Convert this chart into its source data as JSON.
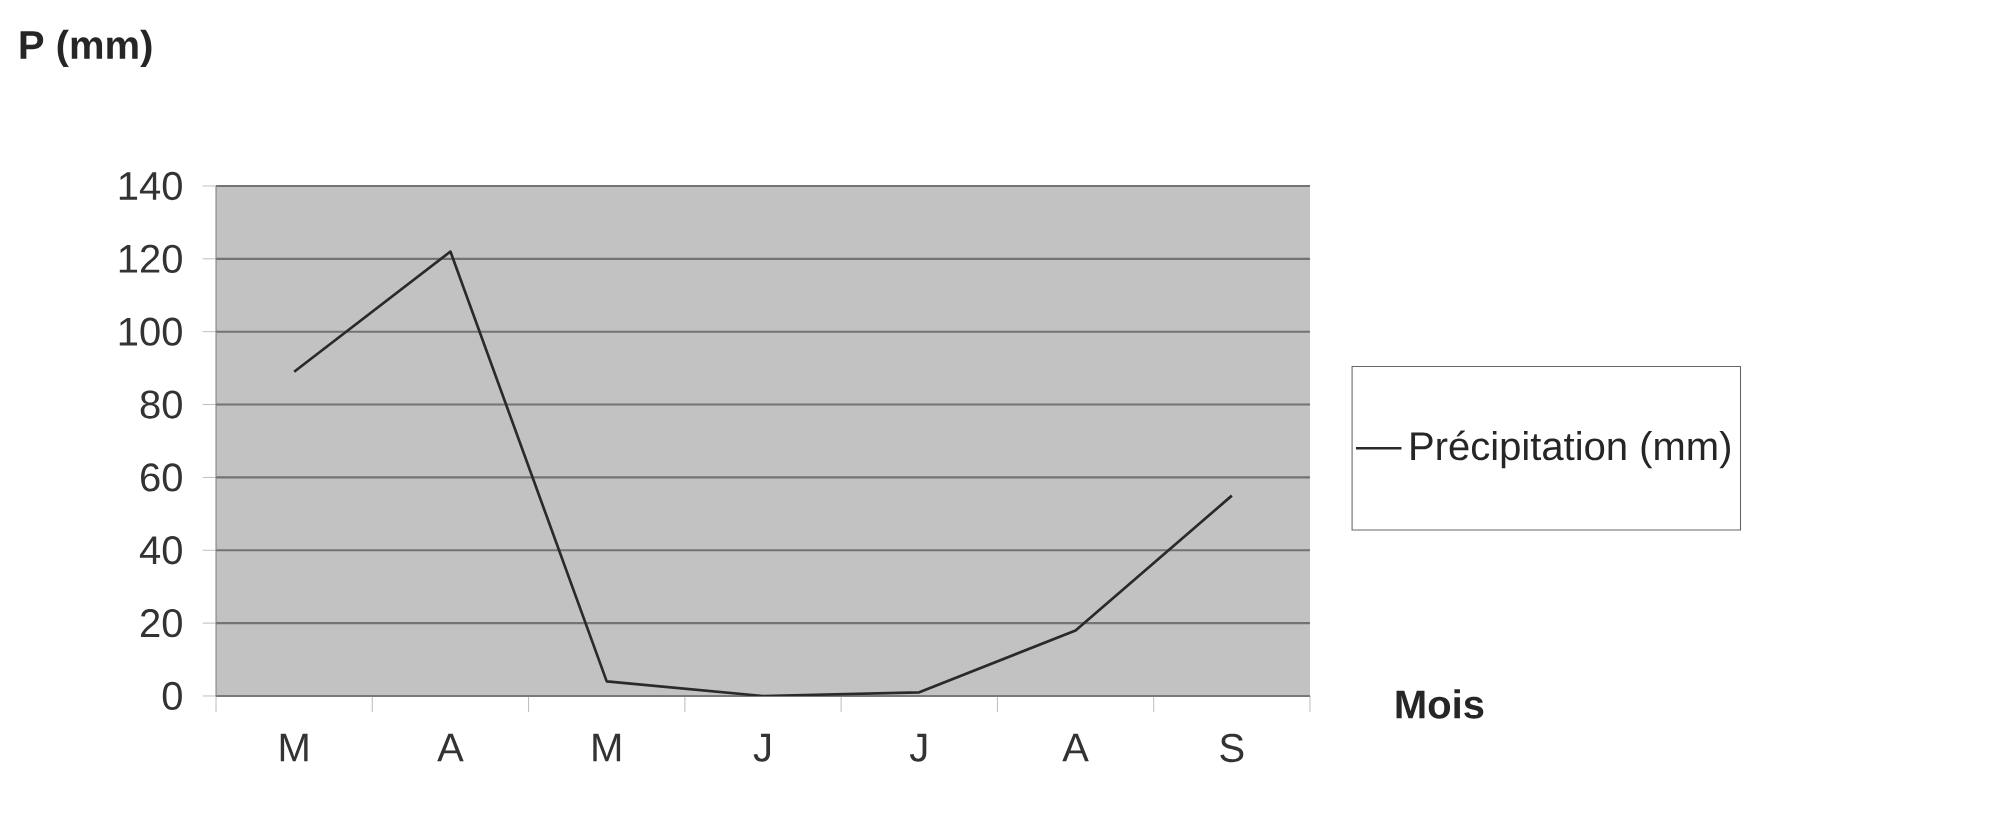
{
  "chart_data": {
    "type": "line",
    "ylabel": "P (mm)",
    "xlabel": "Mois",
    "categories": [
      "M",
      "A",
      "M",
      "J",
      "J",
      "A",
      "S"
    ],
    "series": [
      {
        "name": "Précipitation (mm)",
        "color": "#2a2a2a",
        "values": [
          89,
          122,
          4,
          0,
          1,
          18,
          55
        ]
      }
    ],
    "ylim": [
      0,
      140
    ],
    "yticks": [
      0,
      20,
      40,
      60,
      80,
      100,
      120,
      140
    ],
    "grid": "y",
    "legend": "right",
    "marker": "none",
    "line_style": "solid"
  }
}
